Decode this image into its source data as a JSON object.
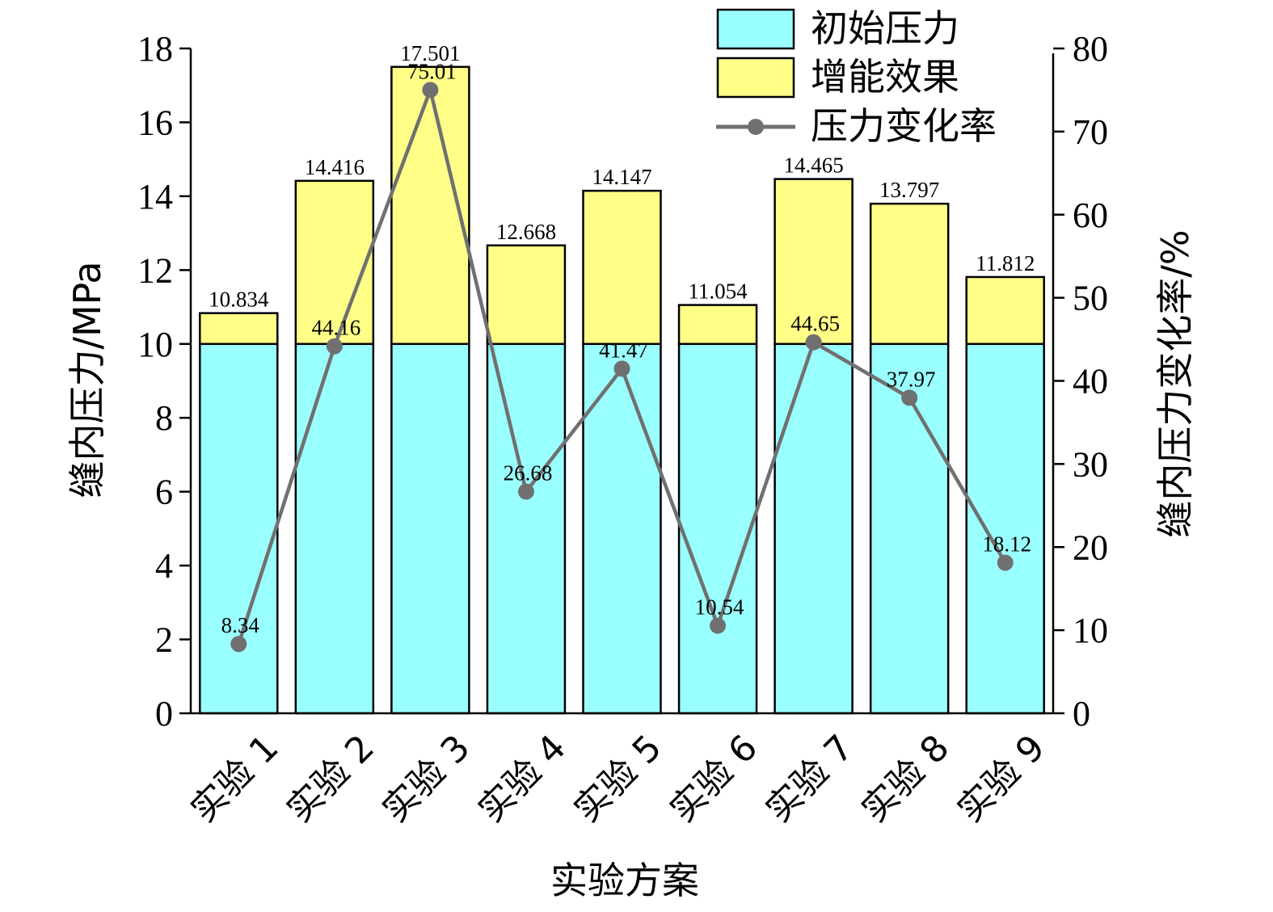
{
  "chart_data": {
    "type": "bar",
    "stacked": true,
    "categories": [
      "实验 1",
      "实验 2",
      "实验 3",
      "实验 4",
      "实验 5",
      "实验 6",
      "实验 7",
      "实验 8",
      "实验 9"
    ],
    "series": [
      {
        "name": "初始压力",
        "axis": "left",
        "color": "#99ffff",
        "values": [
          10,
          10,
          10,
          10,
          10,
          10,
          10,
          10,
          10
        ]
      },
      {
        "name": "增能效果",
        "axis": "left",
        "color": "#ffff88",
        "values": [
          0.834,
          4.416,
          7.501,
          2.668,
          4.147,
          1.054,
          4.465,
          3.797,
          1.812
        ]
      }
    ],
    "totals": [
      "10.834",
      "14.416",
      "17.501",
      "12.668",
      "14.147",
      "11.054",
      "14.465",
      "13.797",
      "11.812"
    ],
    "line_series": {
      "name": "压力变化率",
      "axis": "right",
      "type": "line",
      "color": "#707070",
      "values": [
        8.34,
        44.16,
        75.01,
        26.68,
        41.47,
        10.54,
        44.65,
        37.97,
        18.12
      ],
      "labels": [
        "8.34",
        "44.16",
        "75.01",
        "26.68",
        "41.47",
        "10.54",
        "44.65",
        "37.97",
        "18.12"
      ]
    },
    "xlabel": "实验方案",
    "ylabel": "缝内压力/MPa",
    "ylabel_right": "缝内压力变化率/%",
    "ylim": [
      0,
      18
    ],
    "ylim_right": [
      0,
      80
    ],
    "yticks": [
      0,
      2,
      4,
      6,
      8,
      10,
      12,
      14,
      16,
      18
    ],
    "yticks_right": [
      0,
      10,
      20,
      30,
      40,
      50,
      60,
      70,
      80
    ],
    "grid": false,
    "legend_position": "top-right"
  }
}
